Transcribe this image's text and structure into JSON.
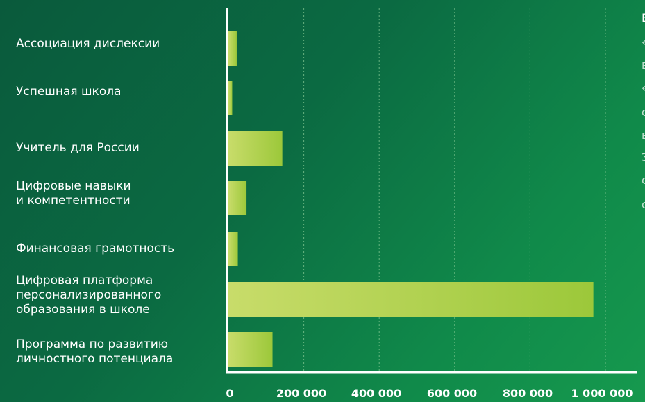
{
  "chart_data": {
    "type": "bar",
    "orientation": "horizontal",
    "categories": [
      "Ассоциация дислексии",
      "Успешная школа",
      "Учитель для России",
      "Цифровые навыки\nи компетентности",
      "Финансовая грамотность",
      "Цифровая платформа\nперсонализированного\nобразования в школе",
      "Программа по развитию\nличностного потенциала"
    ],
    "values": [
      22000,
      10000,
      143000,
      48000,
      25000,
      968000,
      117000
    ],
    "x_ticks": [
      0,
      200000,
      400000,
      600000,
      800000,
      1000000
    ],
    "x_tick_labels": [
      "0",
      "200 000",
      "400 000",
      "600 000",
      "800 000",
      "1 000 000"
    ],
    "xlim": [
      0,
      1000000
    ],
    "grid": "vertical-dotted",
    "legend": "none",
    "colors": {
      "background_start": "#0a5a3c",
      "background_end": "#16994e",
      "bar_start": "#c8dc6a",
      "bar_end": "#9cc83a",
      "axis": "#ffffff",
      "gridline": "#8fcf9a",
      "text": "#ffffff"
    }
  },
  "right_text_fragment": [
    "Е",
    "«",
    "в",
    "«",
    "с",
    "в",
    "З",
    "с",
    "с"
  ]
}
